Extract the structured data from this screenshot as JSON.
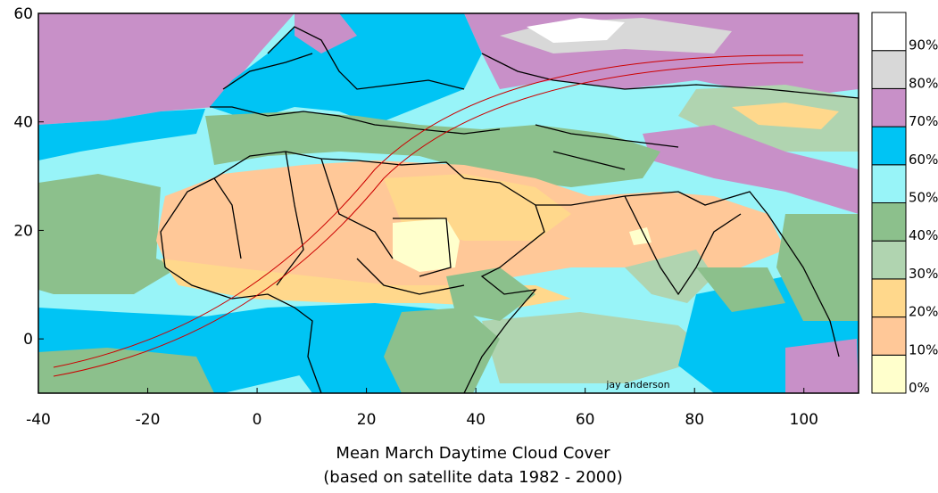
{
  "map": {
    "title": "Mean March Daytime Cloud Cover",
    "subtitle": "(based on satellite data 1982 - 2000)",
    "credit": "jay anderson",
    "region": "North Africa, Europe, Middle East and South Asia",
    "features": [
      "cloud cover shading",
      "country borders",
      "eclipse path (red lines)"
    ]
  },
  "axes": {
    "x_ticks": [
      "-40",
      "-20",
      "0",
      "20",
      "40",
      "60",
      "80",
      "100"
    ],
    "y_ticks": [
      "60",
      "40",
      "20",
      "0"
    ],
    "x_range": [
      -40,
      110
    ],
    "y_range": [
      -10,
      60
    ]
  },
  "legend": {
    "bands": [
      {
        "label": "0%",
        "color": "#ffffcc"
      },
      {
        "label": "10%",
        "color": "#ffc898"
      },
      {
        "label": "20%",
        "color": "#ffd88c"
      },
      {
        "label": "30%",
        "color": "#b0d4b0"
      },
      {
        "label": "40%",
        "color": "#8cc08c"
      },
      {
        "label": "50%",
        "color": "#98f4f8"
      },
      {
        "label": "60%",
        "color": "#00c4f4"
      },
      {
        "label": "70%",
        "color": "#c890c8"
      },
      {
        "label": "80%",
        "color": "#d8d8d8"
      },
      {
        "label": "90%",
        "color": "#ffffff"
      }
    ]
  },
  "colors": {
    "ocean": "#98f4f8",
    "path": "#cc0000",
    "border": "#000000"
  }
}
